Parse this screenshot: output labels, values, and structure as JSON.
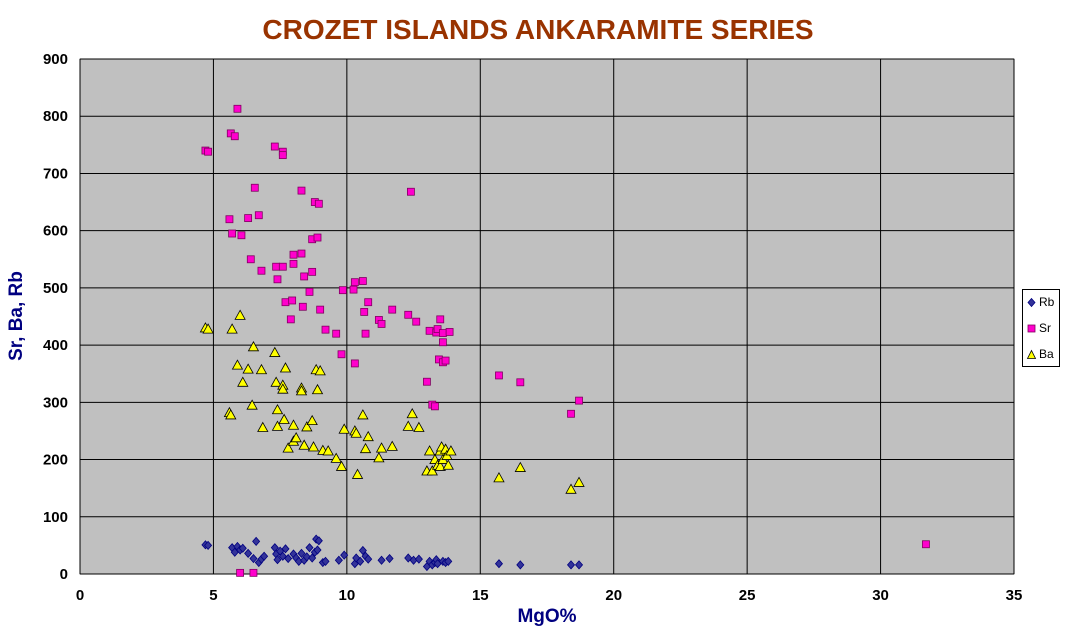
{
  "chart_data": {
    "type": "scatter",
    "title": "CROZET ISLANDS ANKARAMITE SERIES",
    "xlabel": "MgO%",
    "ylabel": "Sr, Ba, Rb",
    "xlim": [
      0,
      35
    ],
    "ylim": [
      0,
      900
    ],
    "xticks": [
      0,
      5,
      10,
      15,
      20,
      25,
      30,
      35
    ],
    "yticks": [
      0,
      100,
      200,
      300,
      400,
      500,
      600,
      700,
      800,
      900
    ],
    "grid": true,
    "legend_position": "right",
    "plot_background": "#c0c0c0",
    "series": [
      {
        "name": "Rb",
        "marker": "diamond",
        "color": "#333399",
        "points": [
          [
            4.7,
            51
          ],
          [
            4.8,
            50
          ],
          [
            5.7,
            46
          ],
          [
            5.8,
            38
          ],
          [
            5.9,
            48
          ],
          [
            6.0,
            42
          ],
          [
            6.1,
            45
          ],
          [
            6.3,
            36
          ],
          [
            6.5,
            27
          ],
          [
            6.6,
            57
          ],
          [
            6.7,
            20
          ],
          [
            6.8,
            26
          ],
          [
            6.9,
            31
          ],
          [
            7.3,
            46
          ],
          [
            7.35,
            35
          ],
          [
            7.4,
            25
          ],
          [
            7.5,
            40
          ],
          [
            7.6,
            31
          ],
          [
            7.7,
            44
          ],
          [
            7.8,
            27
          ],
          [
            8.0,
            35
          ],
          [
            8.1,
            28
          ],
          [
            8.2,
            22
          ],
          [
            8.3,
            36
          ],
          [
            8.4,
            24
          ],
          [
            8.5,
            30
          ],
          [
            8.6,
            46
          ],
          [
            8.7,
            28
          ],
          [
            8.8,
            38
          ],
          [
            8.85,
            61
          ],
          [
            8.9,
            42
          ],
          [
            8.95,
            58
          ],
          [
            9.1,
            20
          ],
          [
            9.2,
            22
          ],
          [
            9.7,
            24
          ],
          [
            9.9,
            33
          ],
          [
            10.3,
            18
          ],
          [
            10.35,
            28
          ],
          [
            10.5,
            22
          ],
          [
            10.6,
            41
          ],
          [
            10.7,
            31
          ],
          [
            10.8,
            26
          ],
          [
            11.3,
            24
          ],
          [
            11.6,
            27
          ],
          [
            12.3,
            28
          ],
          [
            12.5,
            24
          ],
          [
            12.7,
            26
          ],
          [
            13.0,
            13
          ],
          [
            13.1,
            22
          ],
          [
            13.2,
            16
          ],
          [
            13.3,
            20
          ],
          [
            13.35,
            25
          ],
          [
            13.4,
            18
          ],
          [
            13.6,
            22
          ],
          [
            13.7,
            20
          ],
          [
            13.8,
            22
          ],
          [
            15.7,
            18
          ],
          [
            16.5,
            16
          ],
          [
            18.4,
            16
          ],
          [
            18.7,
            16
          ]
        ]
      },
      {
        "name": "Sr",
        "marker": "square",
        "color": "#ff00cc",
        "points": [
          [
            4.7,
            740
          ],
          [
            4.8,
            738
          ],
          [
            5.6,
            620
          ],
          [
            5.65,
            770
          ],
          [
            5.7,
            595
          ],
          [
            5.8,
            765
          ],
          [
            5.9,
            813
          ],
          [
            6.0,
            2
          ],
          [
            6.05,
            592
          ],
          [
            6.3,
            622
          ],
          [
            6.4,
            550
          ],
          [
            6.5,
            2
          ],
          [
            6.55,
            675
          ],
          [
            6.7,
            627
          ],
          [
            6.8,
            530
          ],
          [
            7.3,
            747
          ],
          [
            7.35,
            537
          ],
          [
            7.4,
            515
          ],
          [
            7.6,
            738
          ],
          [
            7.6,
            732
          ],
          [
            7.6,
            537
          ],
          [
            7.7,
            475
          ],
          [
            7.9,
            445
          ],
          [
            7.95,
            478
          ],
          [
            8.0,
            558
          ],
          [
            8.0,
            542
          ],
          [
            8.3,
            670
          ],
          [
            8.3,
            560
          ],
          [
            8.35,
            467
          ],
          [
            8.4,
            520
          ],
          [
            8.6,
            493
          ],
          [
            8.7,
            585
          ],
          [
            8.7,
            528
          ],
          [
            8.8,
            650
          ],
          [
            8.9,
            588
          ],
          [
            8.95,
            647
          ],
          [
            9.0,
            462
          ],
          [
            9.2,
            427
          ],
          [
            9.6,
            420
          ],
          [
            9.8,
            384
          ],
          [
            9.85,
            496
          ],
          [
            10.25,
            497
          ],
          [
            10.3,
            510
          ],
          [
            10.3,
            368
          ],
          [
            10.6,
            512
          ],
          [
            10.65,
            458
          ],
          [
            10.7,
            420
          ],
          [
            10.8,
            475
          ],
          [
            11.2,
            444
          ],
          [
            11.3,
            437
          ],
          [
            11.7,
            462
          ],
          [
            12.3,
            453
          ],
          [
            12.4,
            668
          ],
          [
            12.6,
            441
          ],
          [
            13.0,
            336
          ],
          [
            13.1,
            425
          ],
          [
            13.2,
            296
          ],
          [
            13.3,
            293
          ],
          [
            13.35,
            422
          ],
          [
            13.4,
            428
          ],
          [
            13.45,
            375
          ],
          [
            13.5,
            445
          ],
          [
            13.6,
            421
          ],
          [
            13.6,
            405
          ],
          [
            13.6,
            370
          ],
          [
            13.7,
            373
          ],
          [
            13.85,
            423
          ],
          [
            15.7,
            347
          ],
          [
            16.5,
            335
          ],
          [
            18.4,
            280
          ],
          [
            18.7,
            303
          ],
          [
            31.7,
            52
          ]
        ]
      },
      {
        "name": "Ba",
        "marker": "triangle",
        "color": "#ffff00",
        "points": [
          [
            4.7,
            430
          ],
          [
            4.8,
            428
          ],
          [
            5.6,
            282
          ],
          [
            5.65,
            278
          ],
          [
            5.7,
            428
          ],
          [
            5.9,
            365
          ],
          [
            6.0,
            452
          ],
          [
            6.1,
            335
          ],
          [
            6.3,
            358
          ],
          [
            6.45,
            295
          ],
          [
            6.5,
            397
          ],
          [
            6.8,
            357
          ],
          [
            6.85,
            256
          ],
          [
            7.3,
            387
          ],
          [
            7.35,
            335
          ],
          [
            7.4,
            287
          ],
          [
            7.4,
            258
          ],
          [
            7.6,
            330
          ],
          [
            7.6,
            323
          ],
          [
            7.7,
            360
          ],
          [
            7.65,
            270
          ],
          [
            7.8,
            220
          ],
          [
            8.0,
            260
          ],
          [
            8.0,
            232
          ],
          [
            8.1,
            238
          ],
          [
            8.3,
            325
          ],
          [
            8.3,
            320
          ],
          [
            8.4,
            225
          ],
          [
            8.5,
            257
          ],
          [
            8.7,
            268
          ],
          [
            8.75,
            222
          ],
          [
            8.85,
            357
          ],
          [
            8.9,
            322
          ],
          [
            9.0,
            355
          ],
          [
            9.1,
            216
          ],
          [
            9.3,
            215
          ],
          [
            9.6,
            202
          ],
          [
            9.8,
            188
          ],
          [
            9.9,
            253
          ],
          [
            10.3,
            250
          ],
          [
            10.35,
            246
          ],
          [
            10.4,
            174
          ],
          [
            10.6,
            278
          ],
          [
            10.7,
            219
          ],
          [
            10.8,
            240
          ],
          [
            11.2,
            203
          ],
          [
            11.3,
            220
          ],
          [
            11.7,
            223
          ],
          [
            12.3,
            258
          ],
          [
            12.45,
            280
          ],
          [
            12.7,
            256
          ],
          [
            13.0,
            180
          ],
          [
            13.1,
            215
          ],
          [
            13.2,
            180
          ],
          [
            13.3,
            200
          ],
          [
            13.4,
            190
          ],
          [
            13.5,
            215
          ],
          [
            13.5,
            188
          ],
          [
            13.55,
            222
          ],
          [
            13.6,
            200
          ],
          [
            13.7,
            218
          ],
          [
            13.75,
            207
          ],
          [
            13.8,
            190
          ],
          [
            13.9,
            215
          ],
          [
            15.7,
            168
          ],
          [
            16.5,
            186
          ],
          [
            18.4,
            148
          ],
          [
            18.7,
            160
          ]
        ]
      }
    ]
  }
}
